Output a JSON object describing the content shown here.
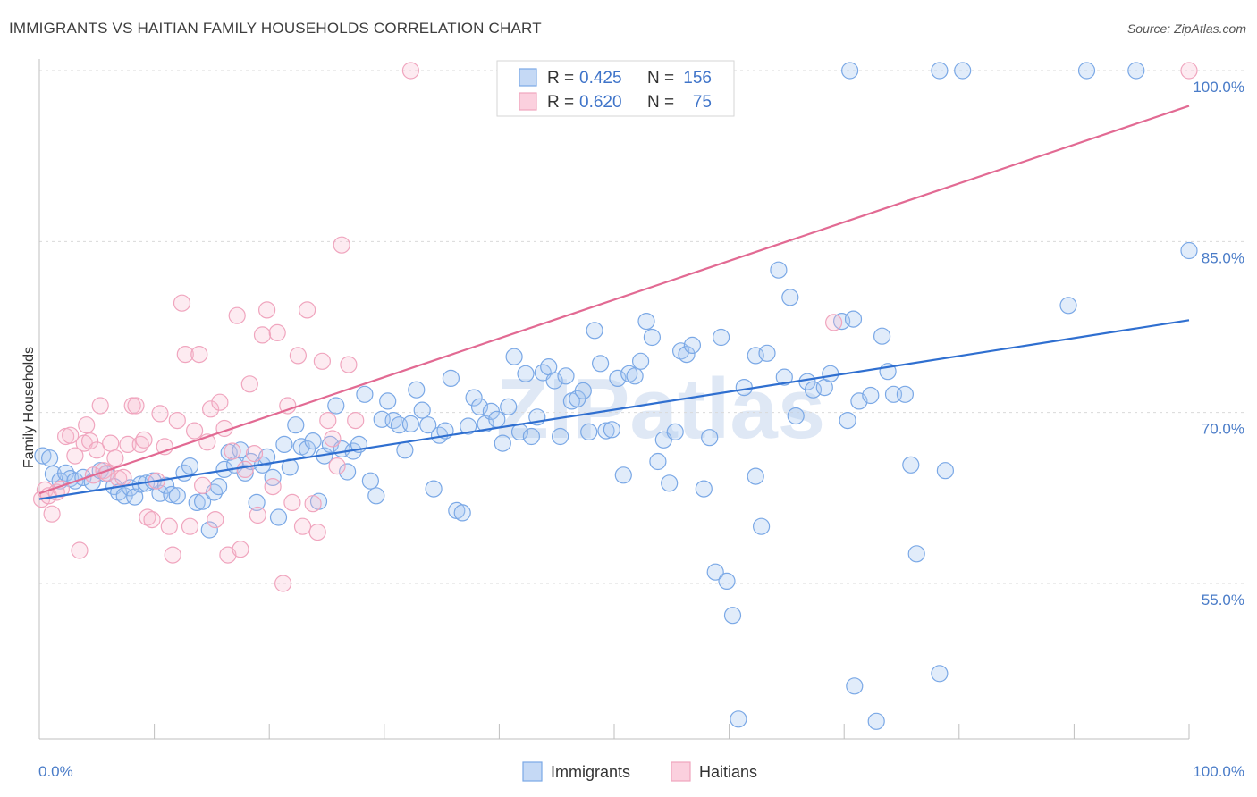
{
  "title": "IMMIGRANTS VS HAITIAN FAMILY HOUSEHOLDS CORRELATION CHART",
  "source": "Source: ZipAtlas.com",
  "watermark": "ZIPatlas",
  "chart_data": {
    "type": "scatter",
    "title": "IMMIGRANTS VS HAITIAN FAMILY HOUSEHOLDS CORRELATION CHART",
    "xlabel": "",
    "ylabel": "Family Households",
    "xlim": [
      0,
      100
    ],
    "ylim": [
      40,
      102
    ],
    "x_tick_labels": [
      "0.0%",
      "100.0%"
    ],
    "y_ticks": [
      55,
      70,
      85,
      100
    ],
    "y_tick_labels": [
      "55.0%",
      "70.0%",
      "85.0%",
      "100.0%"
    ],
    "grid": true,
    "legend_position": "top-center",
    "colors": {
      "Immigrants": "#7aa8e6",
      "Haitians": "#f0a5be",
      "immigrants_line": "#2f6fd0",
      "haitians_line": "#e26a93"
    },
    "stats": [
      {
        "series": "Immigrants",
        "r_label": "R =",
        "r": "0.425",
        "n_label": "N =",
        "n": "156"
      },
      {
        "series": "Haitians",
        "r_label": "R =",
        "r": "0.620",
        "n_label": "N =",
        "n": "75"
      }
    ],
    "series": [
      {
        "name": "Immigrants",
        "trend": {
          "x": [
            0,
            100
          ],
          "y": [
            62.4,
            78.1
          ]
        },
        "points": [
          [
            0.3,
            66.2
          ],
          [
            0.9,
            66.0
          ],
          [
            1.2,
            64.6
          ],
          [
            1.8,
            64.0
          ],
          [
            2.3,
            64.7
          ],
          [
            2.7,
            64.2
          ],
          [
            3.1,
            64.0
          ],
          [
            3.8,
            64.3
          ],
          [
            4.6,
            63.9
          ],
          [
            5.3,
            64.9
          ],
          [
            5.8,
            64.6
          ],
          [
            6.5,
            63.5
          ],
          [
            6.9,
            63.0
          ],
          [
            7.4,
            62.7
          ],
          [
            7.9,
            63.4
          ],
          [
            8.3,
            62.6
          ],
          [
            8.8,
            63.7
          ],
          [
            9.3,
            63.8
          ],
          [
            9.9,
            64.0
          ],
          [
            10.5,
            62.9
          ],
          [
            11.0,
            63.6
          ],
          [
            11.5,
            62.8
          ],
          [
            12.0,
            62.7
          ],
          [
            12.6,
            64.7
          ],
          [
            13.1,
            65.3
          ],
          [
            13.7,
            62.1
          ],
          [
            14.2,
            62.2
          ],
          [
            14.8,
            59.7
          ],
          [
            15.2,
            63.0
          ],
          [
            15.6,
            63.5
          ],
          [
            16.1,
            65.0
          ],
          [
            16.5,
            66.5
          ],
          [
            17.0,
            65.4
          ],
          [
            17.5,
            66.7
          ],
          [
            17.9,
            64.7
          ],
          [
            18.4,
            65.7
          ],
          [
            18.9,
            62.1
          ],
          [
            19.4,
            65.4
          ],
          [
            19.8,
            66.1
          ],
          [
            20.3,
            64.3
          ],
          [
            20.8,
            60.8
          ],
          [
            21.3,
            67.2
          ],
          [
            21.8,
            65.2
          ],
          [
            22.3,
            68.9
          ],
          [
            22.8,
            67.0
          ],
          [
            23.3,
            66.8
          ],
          [
            23.8,
            67.5
          ],
          [
            24.3,
            62.2
          ],
          [
            24.8,
            66.2
          ],
          [
            25.3,
            67.2
          ],
          [
            25.8,
            70.6
          ],
          [
            26.3,
            66.8
          ],
          [
            26.8,
            64.8
          ],
          [
            27.3,
            66.6
          ],
          [
            27.8,
            67.2
          ],
          [
            28.3,
            71.6
          ],
          [
            28.8,
            64.0
          ],
          [
            29.3,
            62.7
          ],
          [
            29.8,
            69.4
          ],
          [
            30.3,
            71.0
          ],
          [
            30.8,
            69.3
          ],
          [
            31.3,
            68.9
          ],
          [
            31.8,
            66.7
          ],
          [
            32.3,
            69.0
          ],
          [
            32.8,
            72.0
          ],
          [
            33.3,
            70.2
          ],
          [
            33.8,
            68.9
          ],
          [
            34.3,
            63.3
          ],
          [
            34.8,
            68.0
          ],
          [
            35.3,
            68.4
          ],
          [
            35.8,
            73.0
          ],
          [
            36.3,
            61.4
          ],
          [
            36.8,
            61.2
          ],
          [
            37.3,
            68.8
          ],
          [
            37.8,
            71.3
          ],
          [
            38.3,
            70.5
          ],
          [
            38.8,
            69.0
          ],
          [
            39.3,
            70.1
          ],
          [
            39.8,
            69.4
          ],
          [
            40.3,
            67.3
          ],
          [
            40.8,
            70.5
          ],
          [
            41.3,
            74.9
          ],
          [
            41.8,
            68.3
          ],
          [
            42.3,
            73.4
          ],
          [
            42.8,
            67.9
          ],
          [
            43.3,
            69.6
          ],
          [
            43.8,
            73.5
          ],
          [
            44.3,
            74.0
          ],
          [
            44.8,
            72.8
          ],
          [
            45.3,
            67.9
          ],
          [
            45.8,
            73.2
          ],
          [
            46.3,
            71.0
          ],
          [
            46.8,
            71.2
          ],
          [
            47.3,
            71.9
          ],
          [
            47.8,
            68.3
          ],
          [
            48.3,
            77.2
          ],
          [
            48.8,
            74.3
          ],
          [
            49.3,
            68.4
          ],
          [
            49.8,
            68.5
          ],
          [
            50.3,
            73.0
          ],
          [
            50.8,
            64.5
          ],
          [
            51.3,
            73.4
          ],
          [
            51.8,
            73.2
          ],
          [
            52.3,
            74.5
          ],
          [
            52.8,
            78.0
          ],
          [
            53.3,
            76.6
          ],
          [
            53.8,
            65.7
          ],
          [
            54.3,
            67.6
          ],
          [
            54.8,
            63.8
          ],
          [
            55.3,
            68.3
          ],
          [
            55.8,
            75.4
          ],
          [
            56.3,
            75.1
          ],
          [
            56.8,
            75.9
          ],
          [
            57.8,
            63.3
          ],
          [
            58.3,
            67.8
          ],
          [
            58.8,
            56.0
          ],
          [
            59.3,
            76.6
          ],
          [
            59.8,
            55.2
          ],
          [
            60.3,
            52.2
          ],
          [
            60.8,
            43.1
          ],
          [
            61.3,
            72.2
          ],
          [
            62.3,
            64.4
          ],
          [
            62.8,
            60.0
          ],
          [
            62.3,
            75.0
          ],
          [
            63.3,
            75.2
          ],
          [
            64.3,
            82.5
          ],
          [
            64.8,
            73.1
          ],
          [
            65.3,
            80.1
          ],
          [
            65.8,
            69.7
          ],
          [
            66.8,
            72.7
          ],
          [
            67.3,
            72.0
          ],
          [
            68.3,
            72.2
          ],
          [
            68.8,
            73.4
          ],
          [
            69.8,
            78.0
          ],
          [
            70.3,
            69.3
          ],
          [
            70.8,
            78.2
          ],
          [
            70.9,
            46.0
          ],
          [
            71.3,
            71.0
          ],
          [
            72.3,
            71.5
          ],
          [
            72.8,
            42.9
          ],
          [
            73.3,
            76.7
          ],
          [
            73.8,
            73.6
          ],
          [
            74.3,
            71.6
          ],
          [
            75.3,
            71.6
          ],
          [
            75.8,
            65.4
          ],
          [
            76.3,
            57.6
          ],
          [
            78.3,
            47.1
          ],
          [
            78.8,
            64.9
          ],
          [
            70.5,
            100.0
          ],
          [
            78.3,
            100.0
          ],
          [
            80.3,
            100.0
          ],
          [
            91.1,
            100.0
          ],
          [
            95.4,
            100.0
          ],
          [
            89.5,
            79.4
          ],
          [
            100.0,
            84.2
          ]
        ]
      },
      {
        "name": "Haitians",
        "trend": {
          "x": [
            0,
            100
          ],
          "y": [
            62.9,
            96.9
          ]
        },
        "points": [
          [
            0.2,
            62.4
          ],
          [
            0.5,
            63.2
          ],
          [
            0.8,
            62.7
          ],
          [
            1.1,
            61.1
          ],
          [
            1.5,
            63.0
          ],
          [
            1.9,
            63.3
          ],
          [
            2.3,
            67.9
          ],
          [
            2.7,
            68.0
          ],
          [
            3.1,
            66.2
          ],
          [
            3.5,
            57.9
          ],
          [
            3.9,
            67.3
          ],
          [
            4.1,
            68.9
          ],
          [
            4.4,
            67.5
          ],
          [
            4.7,
            64.5
          ],
          [
            5.0,
            66.7
          ],
          [
            5.3,
            70.6
          ],
          [
            5.6,
            64.9
          ],
          [
            5.9,
            64.7
          ],
          [
            6.2,
            67.3
          ],
          [
            6.6,
            66.0
          ],
          [
            6.9,
            64.2
          ],
          [
            7.3,
            64.3
          ],
          [
            7.7,
            67.2
          ],
          [
            8.1,
            70.6
          ],
          [
            8.4,
            70.6
          ],
          [
            8.8,
            67.2
          ],
          [
            9.1,
            67.6
          ],
          [
            9.4,
            60.8
          ],
          [
            9.8,
            60.6
          ],
          [
            10.2,
            64.0
          ],
          [
            10.5,
            69.9
          ],
          [
            10.9,
            67.0
          ],
          [
            11.3,
            60.0
          ],
          [
            11.6,
            57.5
          ],
          [
            12.0,
            69.3
          ],
          [
            12.4,
            79.6
          ],
          [
            12.7,
            75.1
          ],
          [
            13.1,
            60.0
          ],
          [
            13.5,
            68.4
          ],
          [
            13.9,
            75.1
          ],
          [
            14.2,
            63.6
          ],
          [
            14.6,
            67.4
          ],
          [
            14.9,
            70.3
          ],
          [
            15.3,
            60.6
          ],
          [
            15.7,
            70.9
          ],
          [
            16.1,
            68.6
          ],
          [
            16.4,
            57.5
          ],
          [
            16.8,
            66.6
          ],
          [
            17.2,
            78.5
          ],
          [
            17.5,
            58.0
          ],
          [
            17.9,
            65.0
          ],
          [
            18.3,
            72.5
          ],
          [
            18.7,
            66.4
          ],
          [
            19.0,
            61.0
          ],
          [
            19.4,
            76.8
          ],
          [
            19.8,
            79.0
          ],
          [
            20.3,
            63.5
          ],
          [
            20.7,
            77.0
          ],
          [
            21.2,
            55.0
          ],
          [
            21.6,
            70.6
          ],
          [
            22.0,
            62.1
          ],
          [
            22.5,
            75.0
          ],
          [
            22.9,
            60.0
          ],
          [
            23.3,
            79.0
          ],
          [
            23.8,
            62.0
          ],
          [
            24.2,
            59.5
          ],
          [
            24.6,
            74.5
          ],
          [
            25.1,
            69.3
          ],
          [
            25.5,
            67.7
          ],
          [
            25.9,
            65.3
          ],
          [
            26.3,
            84.7
          ],
          [
            26.9,
            74.2
          ],
          [
            27.5,
            69.3
          ],
          [
            32.3,
            100.0
          ],
          [
            69.1,
            77.9
          ],
          [
            100.0,
            100.0
          ]
        ]
      }
    ]
  },
  "bottom_legend": [
    {
      "label": "Immigrants",
      "color": "#7aa8e6"
    },
    {
      "label": "Haitians",
      "color": "#f0a5be"
    }
  ]
}
